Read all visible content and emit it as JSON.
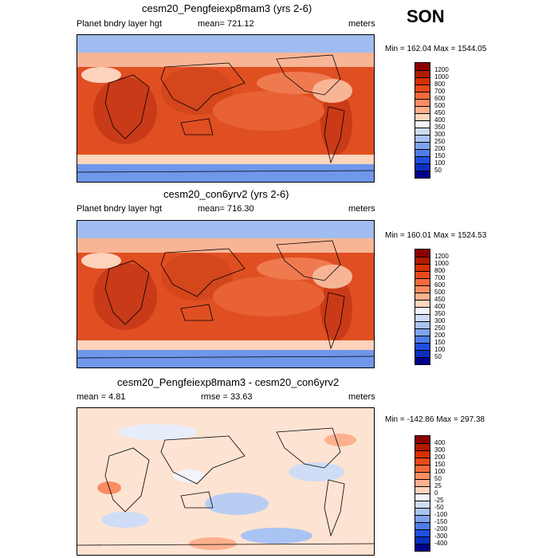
{
  "season": "SON",
  "panels": [
    {
      "title": "cesm20_Pengfeiexp8mam3 (yrs 2-6)",
      "left_label": "Planet bndry layer hgt",
      "center_label": "mean= 721.12",
      "right_label": "meters",
      "minmax": "Min = 162.04 Max = 1544.05",
      "colorbar": {
        "labels": [
          "1200",
          "1000",
          "800",
          "700",
          "600",
          "500",
          "450",
          "400",
          "350",
          "300",
          "250",
          "200",
          "150",
          "100",
          "50"
        ],
        "colors": [
          "#8b0000",
          "#b01a00",
          "#d83000",
          "#e8491a",
          "#f46a3a",
          "#fb8c62",
          "#fdb08e",
          "#fed5bd",
          "#f3f3fb",
          "#cfdcf5",
          "#a9c3f2",
          "#7fa4ee",
          "#4f7de8",
          "#1f4fe0",
          "#0a2fc0",
          "#00008b"
        ]
      }
    },
    {
      "title": "cesm20_con6yrv2 (yrs 2-6)",
      "left_label": "Planet bndry layer hgt",
      "center_label": "mean= 716.30",
      "right_label": "meters",
      "minmax": "Min = 160.01 Max = 1524.53",
      "colorbar": {
        "labels": [
          "1200",
          "1000",
          "800",
          "700",
          "600",
          "500",
          "450",
          "400",
          "350",
          "300",
          "250",
          "200",
          "150",
          "100",
          "50"
        ],
        "colors": [
          "#8b0000",
          "#b01a00",
          "#d83000",
          "#e8491a",
          "#f46a3a",
          "#fb8c62",
          "#fdb08e",
          "#fed5bd",
          "#f3f3fb",
          "#cfdcf5",
          "#a9c3f2",
          "#7fa4ee",
          "#4f7de8",
          "#1f4fe0",
          "#0a2fc0",
          "#00008b"
        ]
      }
    },
    {
      "title": "cesm20_Pengfeiexp8mam3 - cesm20_con6yrv2",
      "left_label": "mean =   4.81",
      "center_label": "rmse =  33.63",
      "right_label": "meters",
      "minmax": "Min = -142.86 Max = 297.38",
      "colorbar": {
        "labels": [
          "400",
          "300",
          "200",
          "150",
          "100",
          "50",
          "25",
          "0",
          "-25",
          "-50",
          "-100",
          "-150",
          "-200",
          "-300",
          "-400"
        ],
        "colors": [
          "#8b0000",
          "#b01a00",
          "#d83000",
          "#e8491a",
          "#f46a3a",
          "#fb8c62",
          "#fdb08e",
          "#fed5bd",
          "#f3f3fb",
          "#cfdcf5",
          "#a9c3f2",
          "#7fa4ee",
          "#4f7de8",
          "#1f4fe0",
          "#0a2fc0",
          "#00008b"
        ]
      }
    }
  ]
}
